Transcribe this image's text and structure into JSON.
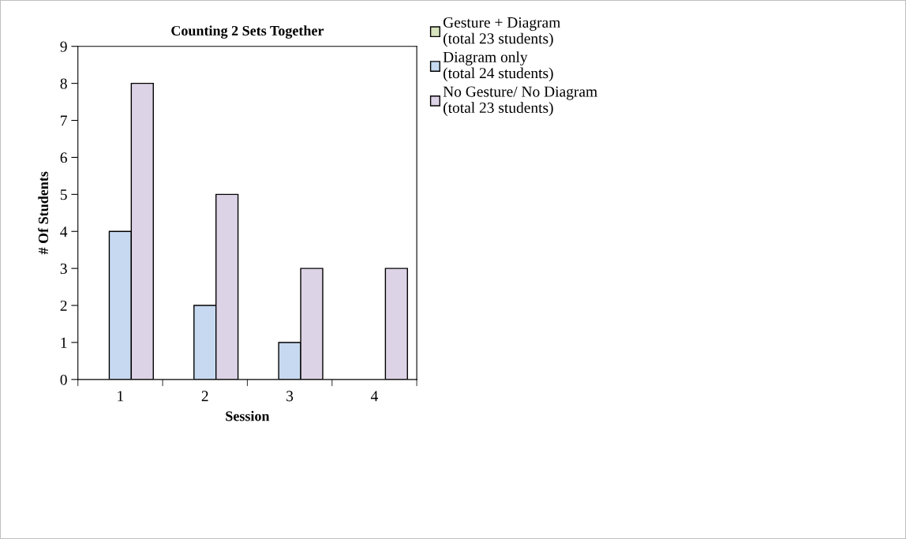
{
  "chart_data": {
    "type": "bar",
    "title": "Counting 2 Sets Together",
    "xlabel": "Session",
    "ylabel": "# Of Students",
    "categories": [
      "1",
      "2",
      "3",
      "4"
    ],
    "series": [
      {
        "name": "Gesture + Diagram\n(total 23 students)",
        "color": "#d7e4bd",
        "values": [
          0,
          0,
          0,
          0
        ]
      },
      {
        "name": "Diagram only\n(total 24 students)",
        "color": "#c6d9f0",
        "values": [
          4,
          2,
          1,
          0
        ]
      },
      {
        "name": "No Gesture/ No Diagram\n(total 23 students)",
        "color": "#ddd3e6",
        "values": [
          8,
          5,
          3,
          3
        ]
      }
    ],
    "ylim": [
      0,
      9
    ],
    "yticks": [
      0,
      1,
      2,
      3,
      4,
      5,
      6,
      7,
      8,
      9
    ],
    "grid": false,
    "legend": "top right"
  }
}
